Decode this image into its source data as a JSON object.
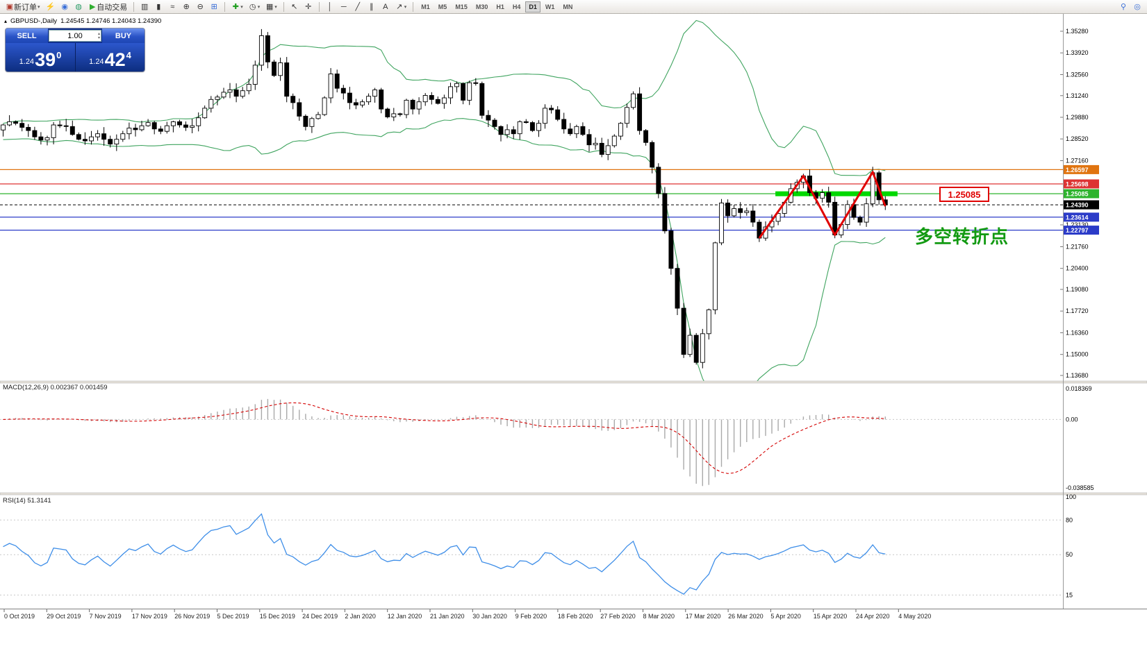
{
  "toolbar": {
    "new_order": "新订单",
    "auto_trading": "自动交易",
    "timeframes": [
      "M1",
      "M5",
      "M15",
      "M30",
      "H1",
      "H4",
      "D1",
      "W1",
      "MN"
    ],
    "active_timeframe": "D1"
  },
  "icons": {
    "new_order": "▣",
    "flash": "⚡",
    "profile": "◉",
    "web": "◍",
    "autotrade_play": "▶",
    "bars_chart": "▥",
    "candle_chart": "▮",
    "line_chart": "≈",
    "zoom_in": "⊕",
    "zoom_out": "⊖",
    "tile_windows": "⊞",
    "add_indicator": "✚",
    "periods_clock": "◷",
    "template": "▦",
    "cursor": "↖",
    "crosshair": "✛",
    "vertical_line": "│",
    "horizontal_line": "─",
    "trend_line": "╱",
    "channel": "∥",
    "text_tool": "A",
    "arrow_tool": "↗",
    "caret": "▾",
    "search_symbols": "⚲",
    "search": "◎",
    "panel_toggle": "▴",
    "stepper_up": "▴",
    "stepper_down": "▾"
  },
  "chart": {
    "header": {
      "symbol": "GBPUSD-,Daily",
      "ohlc": "1.24545 1.24746 1.24043 1.24390"
    },
    "trade_panel": {
      "sell_label": "SELL",
      "buy_label": "BUY",
      "volume": "1.00",
      "sell_price_prefix": "1.24",
      "sell_price_big": "39",
      "sell_price_sup": "0",
      "buy_price_prefix": "1.24",
      "buy_price_big": "42",
      "buy_price_sup": "4"
    },
    "y_axis_labels": [
      "1.35280",
      "1.33920",
      "1.32560",
      "1.31240",
      "1.29880",
      "1.28520",
      "1.27160",
      "1.23130",
      "1.21760",
      "1.20400",
      "1.19080",
      "1.17720",
      "1.16360",
      "1.15000",
      "1.13680"
    ],
    "levels": [
      {
        "label": "1.26597",
        "price": 1.26597,
        "color": "#e07410",
        "dashed": false
      },
      {
        "label": "1.25698",
        "price": 1.25698,
        "color": "#dd3333",
        "dashed": false
      },
      {
        "label": "1.25085",
        "price": 1.25085,
        "color": "#2db32d",
        "dashed": false
      },
      {
        "label": "1.24390",
        "price": 1.2439,
        "color": "#000000",
        "dashed": true
      },
      {
        "label": "1.23614",
        "price": 1.23614,
        "color": "#2b3bc8",
        "dashed": false
      },
      {
        "label": "1.22797",
        "price": 1.22797,
        "color": "#2b3bc8",
        "dashed": false
      }
    ],
    "annotations": {
      "level_label": "1.25085",
      "turning_point_text": "多空转折点",
      "highlight_color": "#00d800",
      "zigzag_color": "#e00000"
    },
    "x_axis_labels": [
      "0 Oct 2019",
      "29 Oct 2019",
      "7 Nov 2019",
      "17 Nov 2019",
      "26 Nov 2019",
      "5 Dec 2019",
      "15 Dec 2019",
      "24 Dec 2019",
      "2 Jan 2020",
      "12 Jan 2020",
      "21 Jan 2020",
      "30 Jan 2020",
      "9 Feb 2020",
      "18 Feb 2020",
      "27 Feb 2020",
      "8 Mar 2020",
      "17 Mar 2020",
      "26 Mar 2020",
      "5 Apr 2020",
      "15 Apr 2020",
      "24 Apr 2020",
      "4 May 2020"
    ]
  },
  "macd_panel": {
    "title": "MACD(12,26,9) 0.002367 0.001459",
    "axis_labels": [
      "0.018369",
      "0.00",
      "-0.038585"
    ],
    "axis_max": 0.018369,
    "axis_min": -0.038585
  },
  "rsi_panel": {
    "title": "RSI(14) 51.3141",
    "axis_labels": [
      "100",
      "80",
      "50",
      "15"
    ],
    "levels": [
      80,
      50,
      15
    ],
    "current": 51.3141
  },
  "chart_data": {
    "type": "candlestick",
    "symbol": "GBPUSD-",
    "period": "Daily",
    "ohlc_current": {
      "open": 1.24545,
      "high": 1.24746,
      "low": 1.24043,
      "close": 1.2439
    },
    "bid": 1.2439,
    "ask": 1.2442,
    "y_range": [
      1.1368,
      1.3528
    ],
    "indicators": {
      "bollinger": [
        20,
        2
      ],
      "macd": [
        12,
        26,
        9
      ],
      "rsi": [
        14
      ]
    },
    "closes": [
      1.294,
      1.296,
      1.295,
      1.2925,
      1.2905,
      1.2865,
      1.2845,
      1.286,
      1.294,
      1.2935,
      1.293,
      1.288,
      1.285,
      1.284,
      1.2865,
      1.2885,
      1.285,
      1.282,
      1.285,
      1.2885,
      1.292,
      1.291,
      1.2935,
      1.2955,
      1.2915,
      1.29,
      1.2935,
      1.296,
      1.294,
      1.2925,
      1.2935,
      1.2985,
      1.3045,
      1.31,
      1.3115,
      1.3145,
      1.316,
      1.312,
      1.3155,
      1.3195,
      1.3315,
      1.35,
      1.3335,
      1.325,
      1.333,
      1.312,
      1.308,
      1.2995,
      1.293,
      1.298,
      1.3005,
      1.311,
      1.326,
      1.317,
      1.314,
      1.308,
      1.3065,
      1.3085,
      1.312,
      1.316,
      1.304,
      1.299,
      1.301,
      1.3005,
      1.3095,
      1.304,
      1.3085,
      1.3125,
      1.31,
      1.3075,
      1.311,
      1.318,
      1.32,
      1.3095,
      1.3205,
      1.32,
      1.3,
      1.297,
      1.293,
      1.288,
      1.291,
      1.2885,
      1.296,
      1.2955,
      1.2905,
      1.295,
      1.3045,
      1.3035,
      1.2975,
      1.2915,
      1.2885,
      1.293,
      1.288,
      1.2815,
      1.2825,
      1.2755,
      1.281,
      1.287,
      1.295,
      1.305,
      1.3135,
      1.2905,
      1.283,
      1.2675,
      1.251,
      1.2275,
      1.204,
      1.179,
      1.15,
      1.162,
      1.145,
      1.163,
      1.178,
      1.22,
      1.245,
      1.237,
      1.2415,
      1.239,
      1.24,
      1.233,
      1.223,
      1.23,
      1.2335,
      1.2385,
      1.2455,
      1.254,
      1.258,
      1.262,
      1.2515,
      1.248,
      1.2515,
      1.2455,
      1.225,
      1.2315,
      1.244,
      1.236,
      1.233,
      1.2445,
      1.264,
      1.247,
      1.2439
    ],
    "zigzag": {
      "indices": [
        120,
        127,
        132,
        138,
        140
      ],
      "prices": [
        1.223,
        1.262,
        1.225,
        1.2645,
        1.243
      ]
    },
    "highlight_bar": {
      "from_index": 123,
      "to_index": 141.5,
      "price": 1.2508
    }
  }
}
